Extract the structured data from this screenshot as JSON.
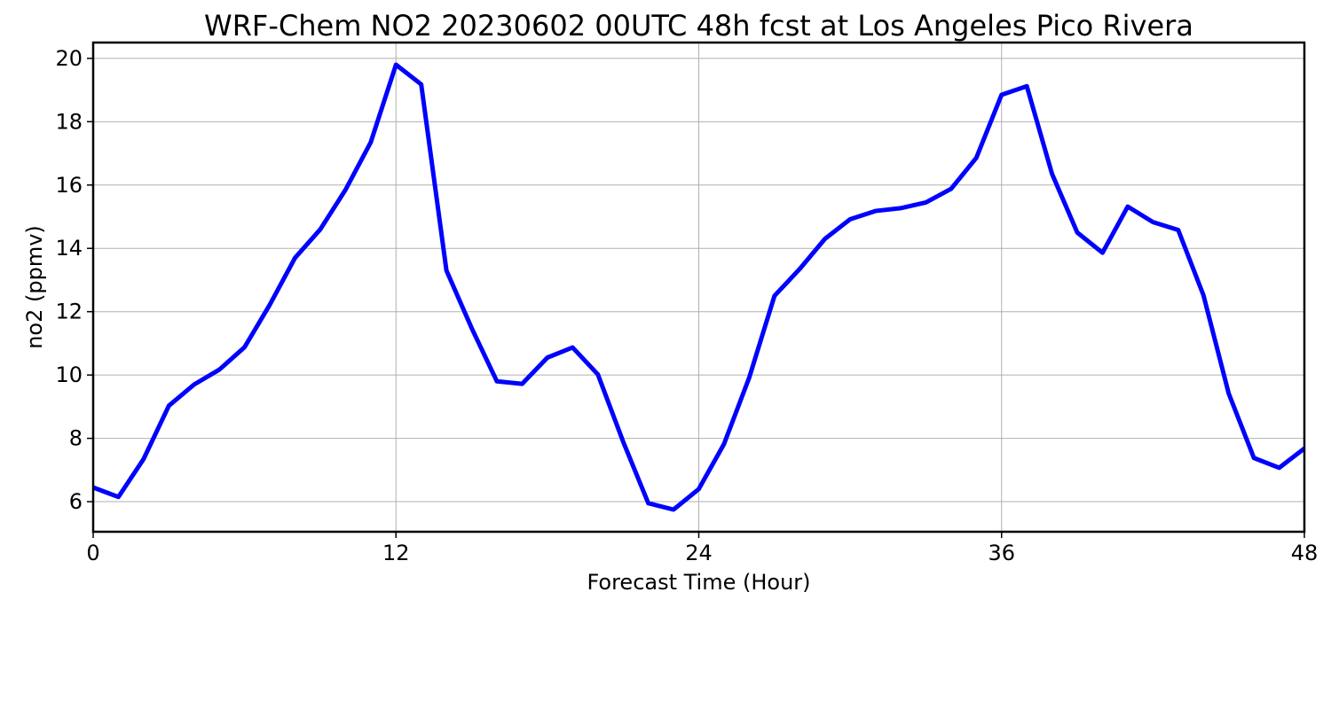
{
  "chart_data": {
    "type": "line",
    "title": "WRF-Chem NO2  20230602 00UTC 48h fcst at Los Angeles Pico Rivera",
    "xlabel": "Forecast Time (Hour)",
    "ylabel": "no2  (ppmv)",
    "xlim": [
      0,
      48
    ],
    "ylim": [
      5.05,
      20.5
    ],
    "xticks": [
      0,
      12,
      24,
      36,
      48
    ],
    "yticks": [
      6,
      8,
      10,
      12,
      14,
      16,
      18,
      20
    ],
    "grid": true,
    "series": [
      {
        "color": "#0000ff",
        "x": [
          0,
          1,
          2,
          3,
          4,
          5,
          6,
          7,
          8,
          9,
          10,
          11,
          12,
          13,
          14,
          15,
          16,
          17,
          18,
          19,
          20,
          21,
          22,
          23,
          24,
          25,
          26,
          27,
          28,
          29,
          30,
          31,
          32,
          33,
          34,
          35,
          36,
          37,
          38,
          39,
          40,
          41,
          42,
          43,
          44,
          45,
          46,
          47,
          48
        ],
        "values": [
          6.45,
          6.15,
          7.35,
          9.03,
          9.7,
          10.17,
          10.88,
          12.22,
          13.7,
          14.6,
          15.85,
          17.35,
          19.8,
          19.18,
          13.3,
          11.48,
          9.8,
          9.72,
          10.55,
          10.87,
          10.02,
          7.9,
          5.95,
          5.75,
          6.4,
          7.82,
          9.92,
          12.5,
          13.35,
          14.3,
          14.92,
          15.18,
          15.27,
          15.45,
          15.88,
          16.86,
          18.85,
          19.12,
          16.35,
          14.5,
          13.86,
          15.32,
          14.83,
          14.58,
          12.52,
          9.42,
          7.38,
          7.07,
          7.68
        ]
      }
    ]
  }
}
